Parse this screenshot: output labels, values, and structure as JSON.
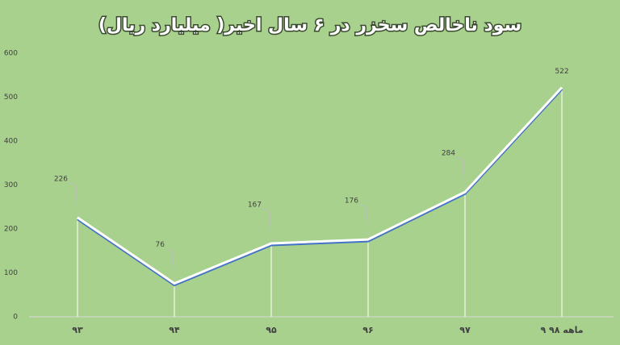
{
  "chart_data": {
    "type": "line",
    "title": "سود ناخالص سخزر در ۶ سال اخیر( میلیارد ریال)",
    "categories": [
      "۹۳",
      "۹۴",
      "۹۵",
      "۹۶",
      "۹۷",
      "۹ ماهه ۹۸"
    ],
    "values": [
      226,
      76,
      167,
      176,
      284,
      522
    ],
    "color": "#ffffff",
    "ylim": [
      0,
      600
    ],
    "yticks": [
      0,
      100,
      200,
      300,
      400,
      500,
      600
    ],
    "grid": false
  }
}
